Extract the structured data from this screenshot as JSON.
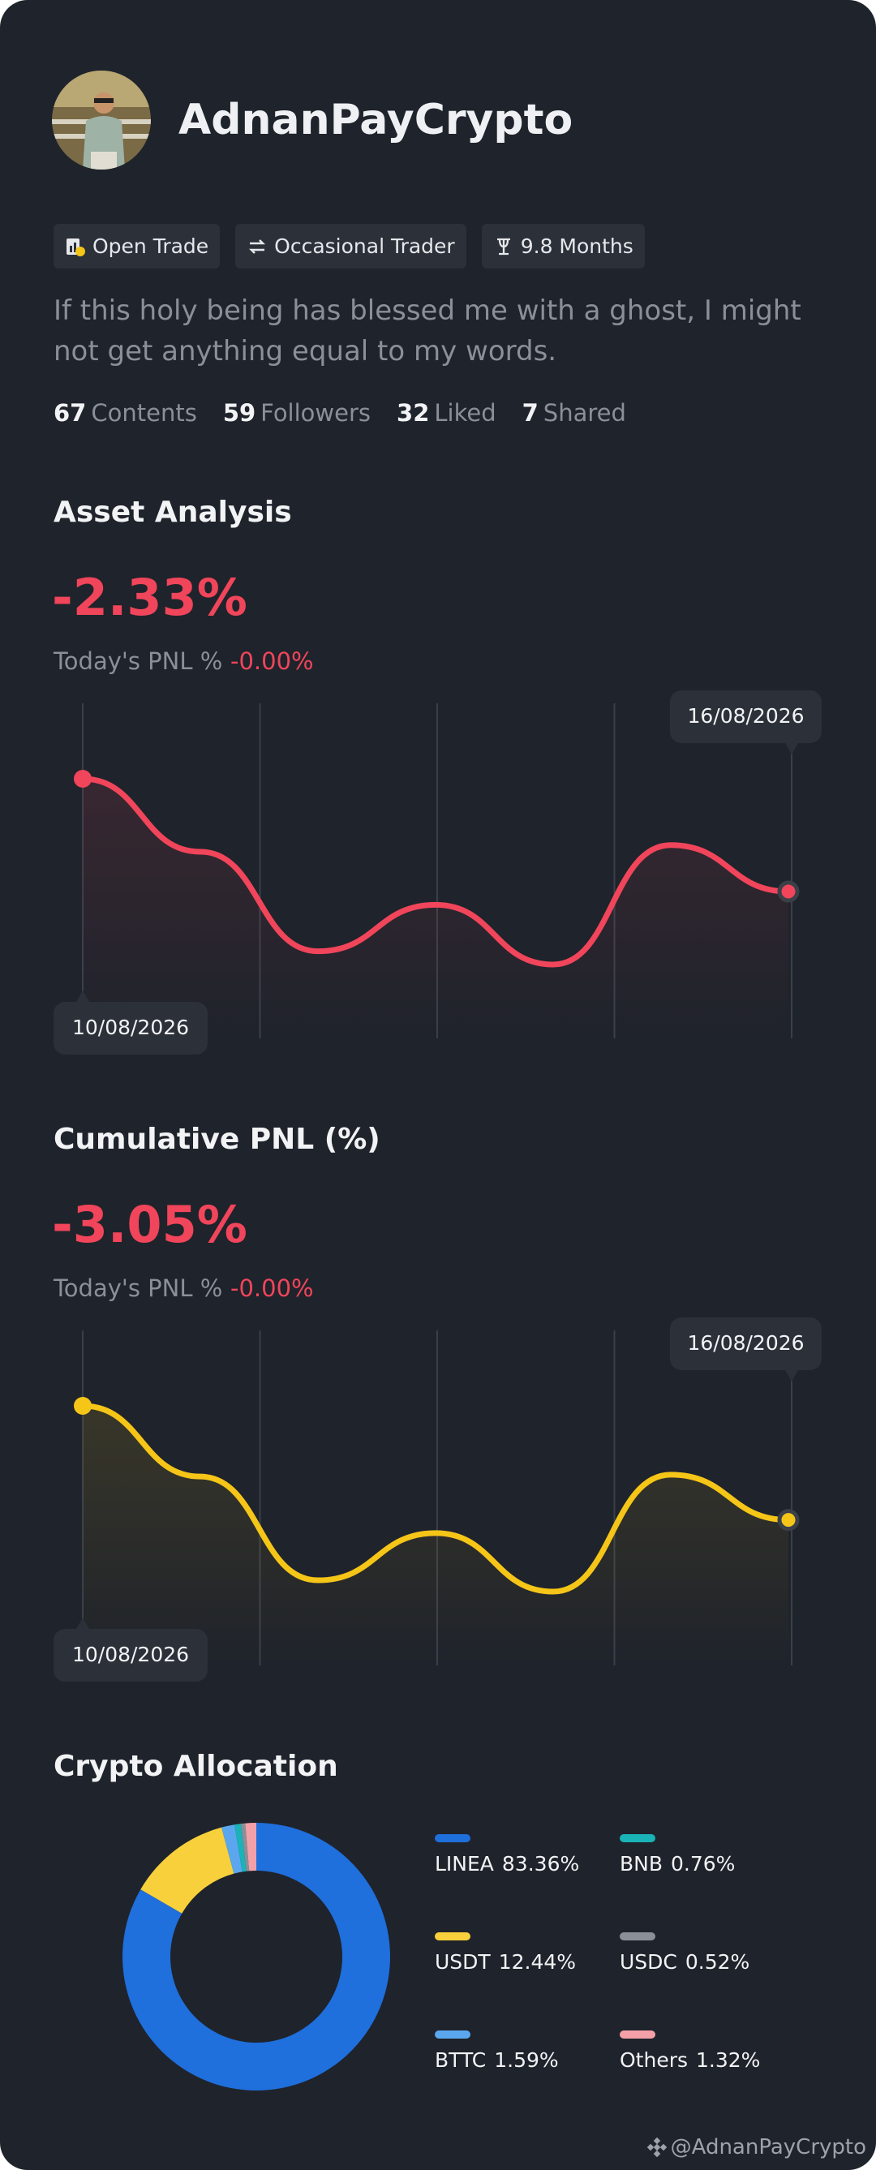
{
  "profile": {
    "name": "AdnanPayCrypto",
    "tags": [
      "Open Trade",
      "Occasional Trader",
      "9.8 Months"
    ],
    "bio": "If this holy being has blessed me with a ghost, I might not get anything equal to my words.",
    "stats": [
      {
        "count": 67,
        "label": "Contents"
      },
      {
        "count": 59,
        "label": "Followers"
      },
      {
        "count": 32,
        "label": "Liked"
      },
      {
        "count": 7,
        "label": "Shared"
      }
    ]
  },
  "chart_data": [
    {
      "type": "line",
      "title": "Asset Analysis",
      "headline": "-2.33%",
      "pnl_label": "Today's PNL %",
      "pnl_value": "-0.00%",
      "categories": [
        "10/08/2026",
        null,
        null,
        null,
        null,
        null,
        "16/08/2026"
      ],
      "values": [
        0,
        -0.55,
        -1.3,
        -0.95,
        -1.4,
        -0.5,
        -0.85
      ],
      "color": "#f0455a"
    },
    {
      "type": "line",
      "title": "Cumulative PNL (%)",
      "headline": "-3.05%",
      "pnl_label": "Today's PNL %",
      "pnl_value": "-0.00%",
      "categories": [
        "10/08/2026",
        null,
        null,
        null,
        null,
        null,
        "16/08/2026"
      ],
      "values": [
        0,
        -0.75,
        -1.85,
        -1.35,
        -1.97,
        -0.73,
        -1.21
      ],
      "color": "#f5c518"
    },
    {
      "type": "pie",
      "title": "Crypto Allocation",
      "donut": true,
      "categories": [
        "LINEA",
        "USDT",
        "BTTC",
        "BNB",
        "USDC",
        "Others"
      ],
      "values": [
        83.36,
        12.44,
        1.59,
        0.76,
        0.52,
        1.32
      ],
      "value_labels": [
        "83.36%",
        "12.44%",
        "1.59%",
        "0.76%",
        "0.52%",
        "1.32%"
      ],
      "colors": [
        "#1f6fdc",
        "#f7d03c",
        "#5aa7ef",
        "#19b3b8",
        "#8a8f98",
        "#f4a0a8"
      ]
    }
  ],
  "watermark": "@AdnanPayCrypto"
}
